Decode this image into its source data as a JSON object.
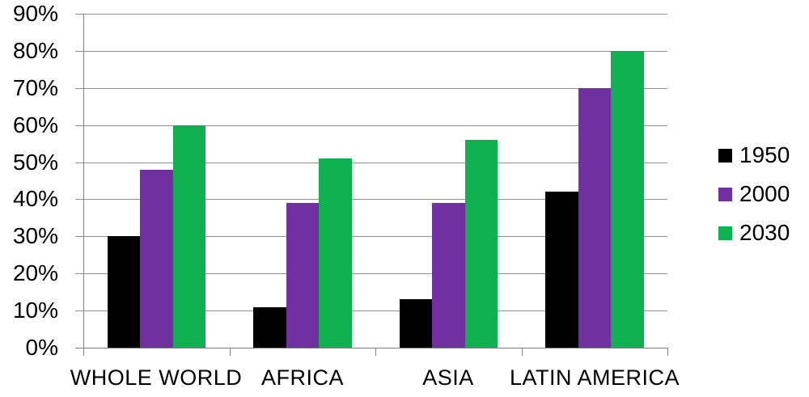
{
  "chart_data": {
    "type": "bar",
    "categories": [
      "WHOLE WORLD",
      "AFRICA",
      "ASIA",
      "LATIN AMERICA"
    ],
    "series": [
      {
        "name": "1950",
        "color": "#000000",
        "values": [
          30,
          11,
          13,
          42
        ]
      },
      {
        "name": "2000",
        "color": "#7030A0",
        "values": [
          48,
          39,
          39,
          70
        ]
      },
      {
        "name": "2030",
        "color": "#0FB04F",
        "values": [
          60,
          51,
          56,
          80
        ]
      }
    ],
    "title": "",
    "xlabel": "",
    "ylabel": "",
    "ylim": [
      0,
      90
    ],
    "ytick_step": 10,
    "ytick_labels": [
      "0%",
      "10%",
      "20%",
      "30%",
      "40%",
      "50%",
      "60%",
      "70%",
      "80%",
      "90%"
    ],
    "grid": true,
    "legend_position": "right",
    "legend_entries": [
      "1950",
      "2000",
      "2030"
    ]
  },
  "colors": {
    "background": "#FFFFFF",
    "gridline": "#8F8F8F",
    "axis": "#7F7F7F",
    "text": "#000000",
    "series_1950": "#000000",
    "series_2000": "#7030A0",
    "series_2030": "#0FB04F"
  }
}
